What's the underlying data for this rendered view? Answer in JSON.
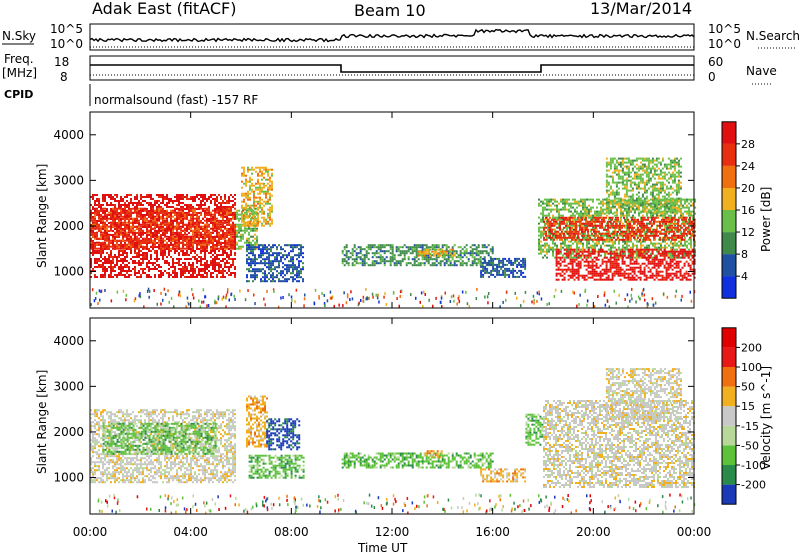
{
  "header": {
    "radar": "Adak East (fitACF)",
    "beam": "Beam 10",
    "date": "13/Mar/2014"
  },
  "top_panel": {
    "left_label": "N.Sky",
    "left_ticks": [
      "10^5",
      "10^0"
    ],
    "right_label": "N.Search",
    "right_ticks": [
      "10^5",
      "10^0"
    ]
  },
  "freq_panel": {
    "left_label_1": "Freq.",
    "left_label_2": "[MHz]",
    "left_ticks": [
      "18",
      "8"
    ],
    "right_label": "Nave",
    "right_ticks": [
      "60",
      "0"
    ]
  },
  "cpid": {
    "label": "CPID",
    "text": "normalsound (fast) -157 RF"
  },
  "x_axis": {
    "ticks": [
      "00:00",
      "04:00",
      "08:00",
      "12:00",
      "16:00",
      "20:00",
      "00:00"
    ],
    "label": "Time UT"
  },
  "chart_data": [
    {
      "type": "heatmap",
      "title": "Power",
      "ylabel": "Slant Range [km]",
      "xlabel": "Time UT",
      "xlim": [
        0,
        24
      ],
      "ylim": [
        200,
        4500
      ],
      "yticks": [
        "1000",
        "2000",
        "3000",
        "4000"
      ],
      "colorbar": {
        "label": "Power [dB]",
        "ticks": [
          "4",
          "8",
          "12",
          "16",
          "20",
          "24",
          "28"
        ],
        "colors": [
          "#1030e0",
          "#2050a0",
          "#3f8a4a",
          "#6abf4a",
          "#f0b020",
          "#f07010",
          "#e83010",
          "#e01010"
        ]
      },
      "regions": [
        {
          "t0": 0.0,
          "t1": 5.8,
          "r0": 900,
          "r1": 2700,
          "level": 7
        },
        {
          "t0": 0.0,
          "t1": 5.8,
          "r0": 1500,
          "r1": 2400,
          "level": 6
        },
        {
          "t0": 5.8,
          "t1": 6.6,
          "r0": 1500,
          "r1": 2400,
          "level": 3
        },
        {
          "t0": 6.0,
          "t1": 7.2,
          "r0": 2000,
          "r1": 3300,
          "level": 4
        },
        {
          "t0": 6.2,
          "t1": 8.5,
          "r0": 800,
          "r1": 1600,
          "level": 1
        },
        {
          "t0": 10.0,
          "t1": 16.0,
          "r0": 1150,
          "r1": 1600,
          "level": 2
        },
        {
          "t0": 13.0,
          "t1": 14.5,
          "r0": 1350,
          "r1": 1500,
          "level": 4
        },
        {
          "t0": 15.5,
          "t1": 17.3,
          "r0": 900,
          "r1": 1300,
          "level": 1
        },
        {
          "t0": 17.8,
          "t1": 24.0,
          "r0": 1300,
          "r1": 2600,
          "level": 3
        },
        {
          "t0": 18.0,
          "t1": 24.0,
          "r0": 1700,
          "r1": 2200,
          "level": 6
        },
        {
          "t0": 18.5,
          "t1": 24.0,
          "r0": 800,
          "r1": 1500,
          "level": 7
        },
        {
          "t0": 20.5,
          "t1": 23.5,
          "r0": 2300,
          "r1": 3500,
          "level": 3
        }
      ]
    },
    {
      "type": "heatmap",
      "title": "Velocity",
      "ylabel": "Slant Range [km]",
      "xlabel": "Time UT",
      "xlim": [
        0,
        24
      ],
      "ylim": [
        200,
        4500
      ],
      "yticks": [
        "1000",
        "2000",
        "3000",
        "4000"
      ],
      "colorbar": {
        "label": "Velocity [m s^-1]",
        "ticks": [
          "200",
          "100",
          "50",
          "15",
          "-15",
          "-50",
          "-100",
          "-200"
        ],
        "colors": [
          "#1a3ab8",
          "#2a8a4a",
          "#5cc23a",
          "#b8d89a",
          "#c8c8c8",
          "#f0b020",
          "#f07010",
          "#e81818",
          "#e00000"
        ]
      },
      "regions": [
        {
          "t0": 0.0,
          "t1": 5.8,
          "r0": 900,
          "r1": 2500,
          "level": 4
        },
        {
          "t0": 0.5,
          "t1": 5.0,
          "r0": 1500,
          "r1": 2200,
          "level": 2
        },
        {
          "t0": 6.2,
          "t1": 7.0,
          "r0": 1700,
          "r1": 2800,
          "level": 5
        },
        {
          "t0": 7.0,
          "t1": 8.3,
          "r0": 1600,
          "r1": 2300,
          "level": 0
        },
        {
          "t0": 6.3,
          "t1": 8.5,
          "r0": 1000,
          "r1": 1500,
          "level": 2
        },
        {
          "t0": 10.0,
          "t1": 16.0,
          "r0": 1200,
          "r1": 1550,
          "level": 2
        },
        {
          "t0": 13.3,
          "t1": 14.0,
          "r0": 1450,
          "r1": 1600,
          "level": 5
        },
        {
          "t0": 15.5,
          "t1": 17.3,
          "r0": 900,
          "r1": 1200,
          "level": 5
        },
        {
          "t0": 17.3,
          "t1": 18.0,
          "r0": 1700,
          "r1": 2400,
          "level": 2
        },
        {
          "t0": 18.0,
          "t1": 24.0,
          "r0": 800,
          "r1": 2700,
          "level": 4
        },
        {
          "t0": 20.5,
          "t1": 23.5,
          "r0": 2300,
          "r1": 3400,
          "level": 4
        }
      ]
    }
  ]
}
